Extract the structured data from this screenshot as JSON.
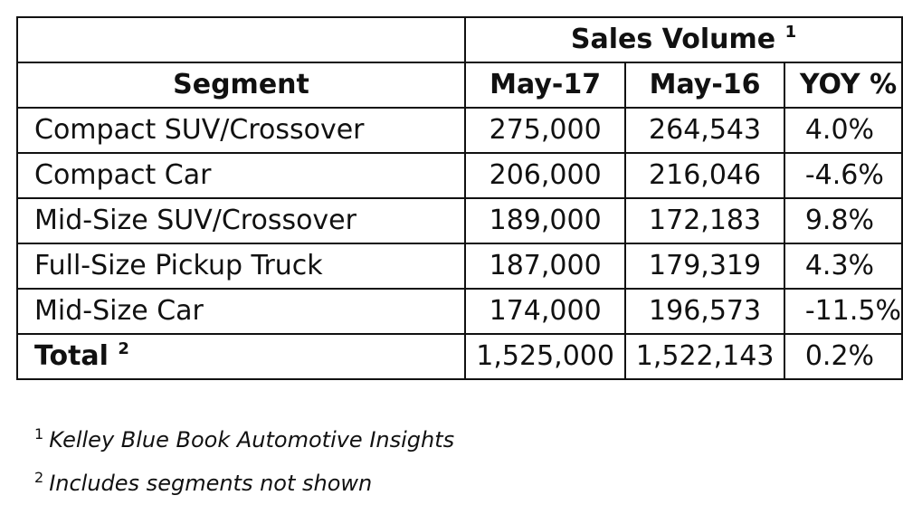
{
  "table": {
    "group_header": "Sales Volume",
    "group_header_mark": "1",
    "columns": {
      "segment": "Segment",
      "may17": "May-17",
      "may16": "May-16",
      "yoy": "YOY %"
    },
    "rows": [
      {
        "segment": "Compact SUV/Crossover",
        "may17": "275,000",
        "may16": "264,543",
        "yoy": "4.0%"
      },
      {
        "segment": "Compact Car",
        "may17": "206,000",
        "may16": "216,046",
        "yoy": "-4.6%"
      },
      {
        "segment": "Mid-Size SUV/Crossover",
        "may17": "189,000",
        "may16": "172,183",
        "yoy": "9.8%"
      },
      {
        "segment": "Full-Size Pickup Truck",
        "may17": "187,000",
        "may16": "179,319",
        "yoy": "4.3%"
      },
      {
        "segment": "Mid-Size Car",
        "may17": "174,000",
        "may16": "196,573",
        "yoy": "-11.5%"
      }
    ],
    "total": {
      "label": "Total",
      "label_mark": "2",
      "may17": "1,525,000",
      "may16": "1,522,143",
      "yoy": "0.2%"
    }
  },
  "footnotes": [
    {
      "mark": "1",
      "text": "Kelley Blue Book Automotive Insights"
    },
    {
      "mark": "2",
      "text": "Includes segments not shown"
    }
  ]
}
